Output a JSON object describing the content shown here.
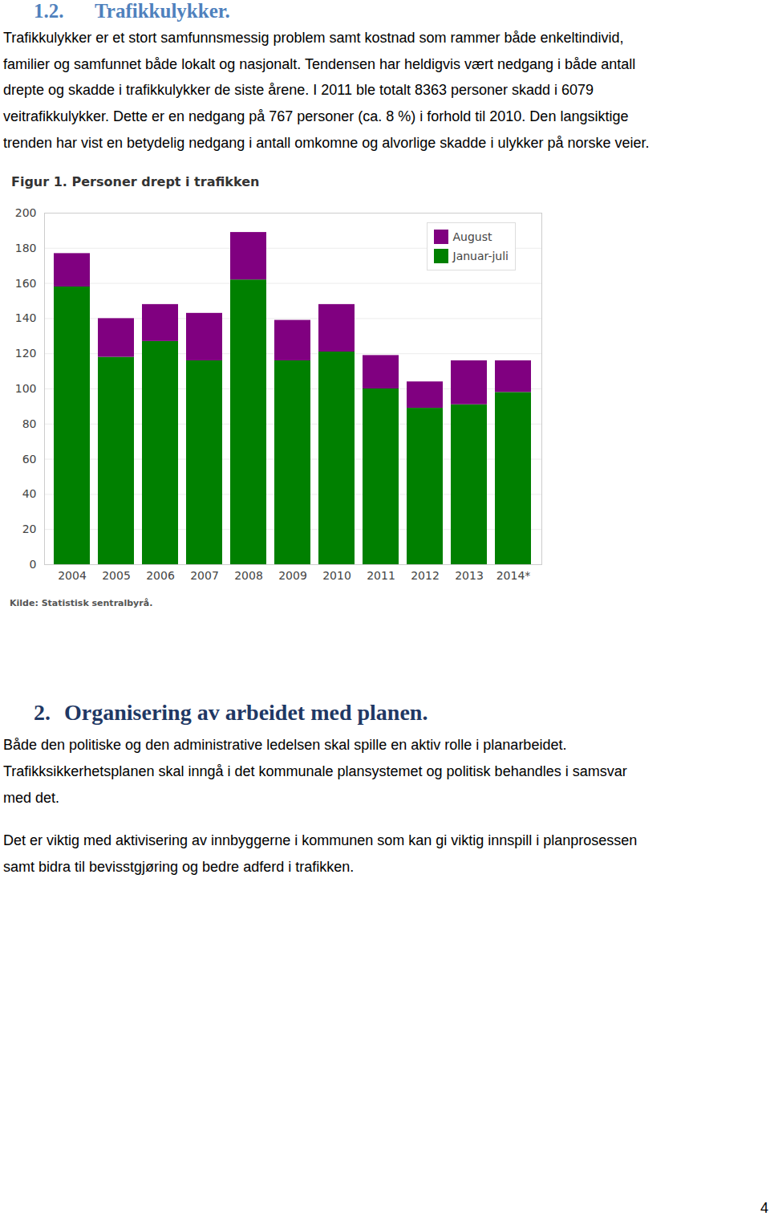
{
  "document": {
    "section_1": {
      "number": "1.2.",
      "title": "Trafikkulykker.",
      "lines": [
        "Trafikkulykker er et stort samfunnsmessig problem samt kostnad som rammer både enkeltindivid,",
        "familier og samfunnet både lokalt og nasjonalt. Tendensen har heldigvis vært nedgang i både antall",
        "drepte og skadde i trafikkulykker de siste årene. I 2011 ble totalt 8363 personer skadd i 6079",
        "veitrafikkulykker. Dette er en nedgang på 767 personer (ca. 8 %) i forhold til 2010. Den langsiktige",
        "trenden har vist en betydelig nedgang i antall omkomne og alvorlige skadde i ulykker på norske veier."
      ]
    },
    "figure_source": "Kilde: Statistisk sentralbyrå.",
    "section_2": {
      "number": "2.",
      "title": "Organisering av arbeidet med planen.",
      "paragraphs": [
        [
          "Både den politiske og den administrative ledelsen skal spille en aktiv rolle i planarbeidet.",
          "Trafikksikkerhetsplanen skal inngå i det kommunale plansystemet og politisk behandles i samsvar",
          "med det."
        ],
        [
          "Det er viktig med aktivisering av innbyggerne i kommunen som kan gi viktig innspill i planprosessen",
          "samt bidra til bevisstgjøring og bedre adferd i trafikken."
        ]
      ]
    },
    "page_number": "4"
  },
  "chart_data": {
    "type": "bar",
    "title": "Figur 1. Personer drept i trafikken",
    "categories": [
      "2004",
      "2005",
      "2006",
      "2007",
      "2008",
      "2009",
      "2010",
      "2011",
      "2012",
      "2013",
      "2014*"
    ],
    "series": [
      {
        "name": "Januar-juli",
        "color": "#008000",
        "values": [
          158,
          118,
          127,
          116,
          162,
          116,
          121,
          100,
          89,
          91,
          98
        ]
      },
      {
        "name": "August",
        "color": "#800080",
        "values": [
          19,
          22,
          21,
          27,
          27,
          23,
          27,
          19,
          15,
          25,
          18
        ]
      }
    ],
    "stacked": true,
    "ylim": [
      0,
      200
    ],
    "yticks": [
      0,
      20,
      40,
      60,
      80,
      100,
      120,
      140,
      160,
      180,
      200
    ],
    "grid": true,
    "legend": "top-right"
  }
}
